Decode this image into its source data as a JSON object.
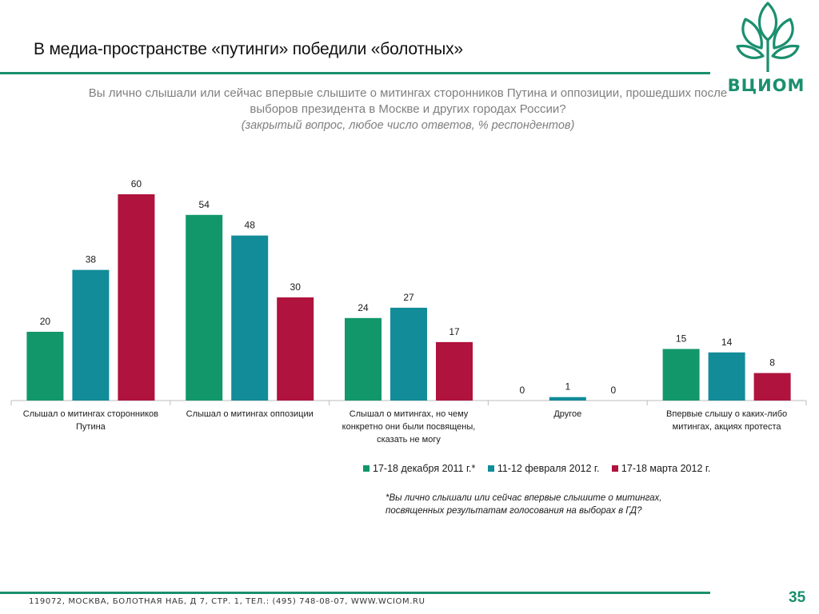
{
  "slide": {
    "title": "В медиа-пространстве «путинги» победили «болотных»",
    "question": "Вы лично слышали или сейчас впервые слышите о митингах сторонников Путина и оппозиции, прошедших после выборов президента в Москве и других городах России?",
    "question_note": "(закрытый вопрос, любое число ответов, % респондентов)",
    "footnote": "*Вы лично слышали или сейчас впервые слышите о митингах, посвященных результатам голосования на выборах в ГД?",
    "footer": "119072, МОСКВА, БОЛОТНАЯ НАБ, Д 7, СТР. 1, ТЕЛ.: (495) 748-08-07, WWW.WCIOM.RU",
    "page_number": "35"
  },
  "logo": {
    "text": "ВЦИОМ",
    "icon": "wciom-tree-icon"
  },
  "colors": {
    "brand_green": "#1a8f6e",
    "series_1": "#12976b",
    "series_2": "#128c99",
    "series_3": "#b0133d",
    "footer_text": "#333333"
  },
  "chart_data": {
    "type": "bar",
    "categories": [
      "Слышал о митингах сторонников Путина",
      "Слышал о митингах оппозиции",
      "Слышал о митингах, но чему конкретно они были посвящены, сказать не могу",
      "Другое",
      "Впервые слышу о каких-либо митингах, акциях протеста"
    ],
    "series": [
      {
        "name": "17-18 декабря 2011 г.*",
        "values": [
          20,
          54,
          24,
          0,
          15
        ]
      },
      {
        "name": "11-12 февраля 2012 г.",
        "values": [
          38,
          48,
          27,
          1,
          14
        ]
      },
      {
        "name": "17-18 марта 2012 г.",
        "values": [
          60,
          30,
          17,
          0,
          8
        ]
      }
    ],
    "ylim": [
      0,
      60
    ],
    "grid": false,
    "legend": "bottom",
    "data_labels": true
  }
}
